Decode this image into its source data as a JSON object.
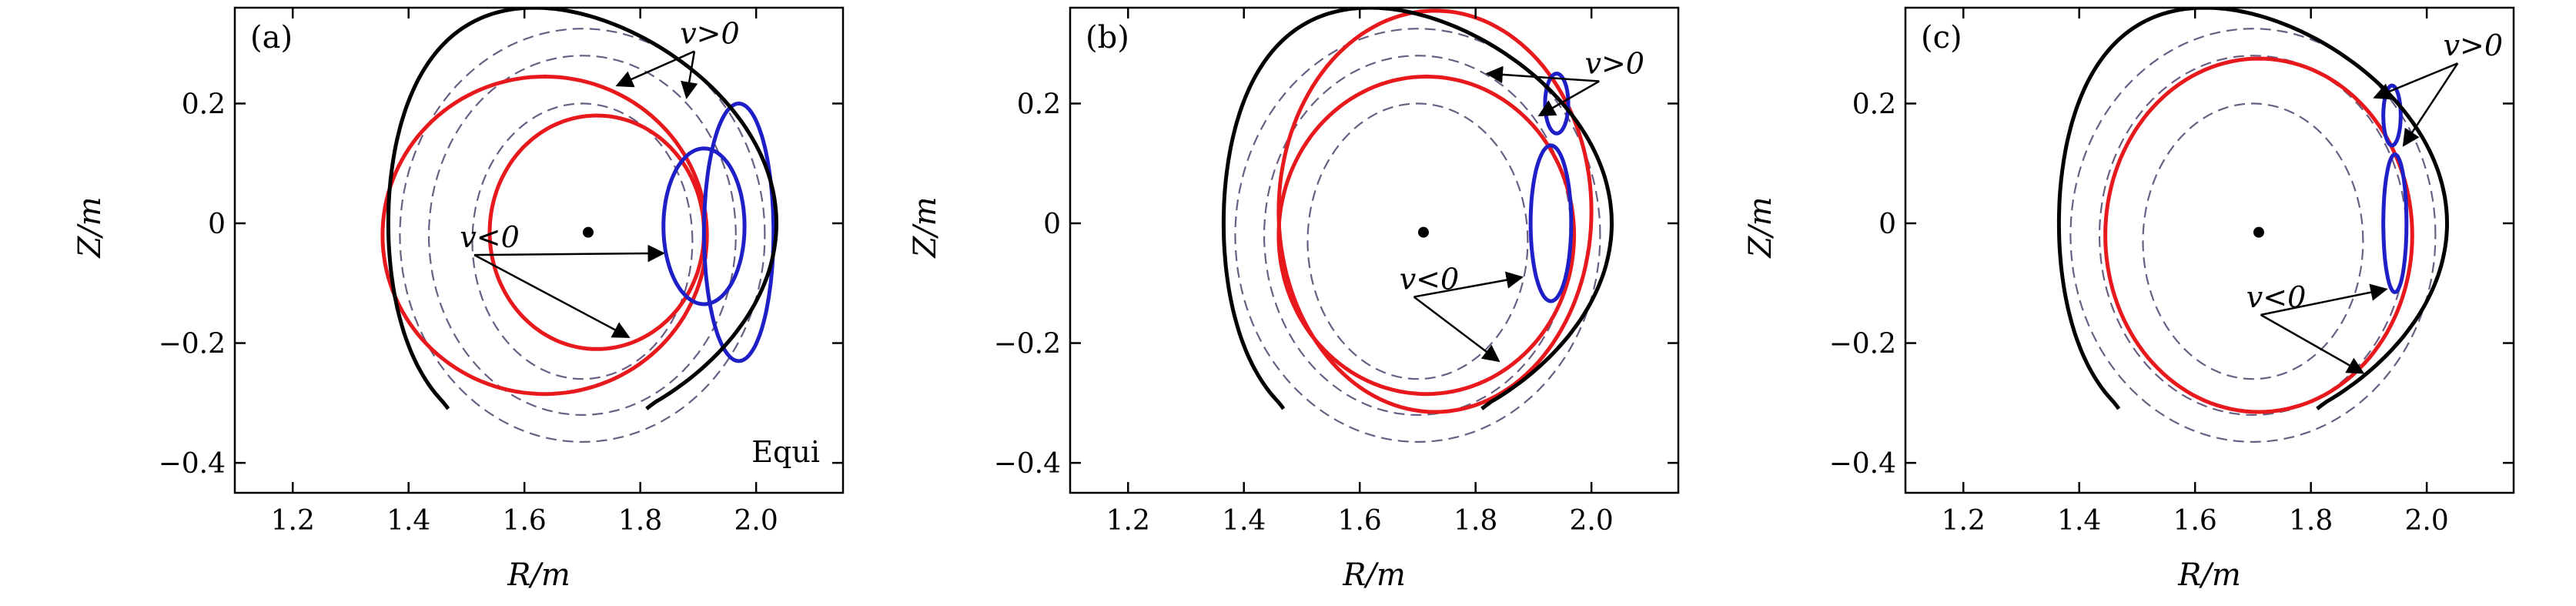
{
  "chart_data": [
    {
      "type": "contour",
      "panel_label": "(a)",
      "xlabel": "R/m",
      "ylabel": "Z/m",
      "xlim": [
        1.1,
        2.15
      ],
      "ylim": [
        -0.45,
        0.36
      ],
      "xticks": [
        1.2,
        1.4,
        1.6,
        1.8,
        2.0
      ],
      "yticks": [
        0.2,
        0,
        -0.2,
        -0.4
      ],
      "xtick_labels": [
        "1.2",
        "1.4",
        "1.6",
        "1.8",
        "2.0"
      ],
      "ytick_labels": [
        "0.2",
        "0",
        "−0.2",
        "−0.4"
      ],
      "corner_label": "Equi",
      "axis_center": [
        1.71,
        -0.015
      ],
      "boundary_color": "#000000",
      "dashed_color": "#6a5f82",
      "red_color": "#e8191c",
      "blue_color": "#1f1fc8",
      "dashed_contours": [
        {
          "cx": 1.7,
          "cy": -0.02,
          "a": 0.315,
          "b": 0.345
        },
        {
          "cx": 1.7,
          "cy": -0.02,
          "a": 0.265,
          "b": 0.3
        },
        {
          "cx": 1.7,
          "cy": -0.03,
          "a": 0.19,
          "b": 0.23
        }
      ],
      "red_contours": [
        {
          "cx": 1.635,
          "cy": -0.02,
          "a": 0.28,
          "b": 0.265
        },
        {
          "cx": 1.725,
          "cy": -0.015,
          "a": 0.185,
          "b": 0.195
        }
      ],
      "blue_regions": [
        {
          "cx": 1.91,
          "cy": -0.005,
          "a": 0.07,
          "b": 0.13
        },
        {
          "cx": 1.97,
          "cy": -0.015,
          "a": 0.06,
          "b": 0.215
        }
      ],
      "annotations": [
        {
          "text": "v>0",
          "at": [
            1.92,
            0.3
          ],
          "targets": [
            [
              1.76,
              0.23
            ],
            [
              1.88,
              0.21
            ]
          ]
        },
        {
          "text": "v<0",
          "at": [
            1.54,
            -0.04
          ],
          "targets": [
            [
              1.84,
              -0.05
            ],
            [
              1.78,
              -0.19
            ]
          ]
        }
      ]
    },
    {
      "type": "contour",
      "panel_label": "(b)",
      "xlabel": "R/m",
      "ylabel": "Z/m",
      "xlim": [
        1.1,
        2.15
      ],
      "ylim": [
        -0.45,
        0.36
      ],
      "xticks": [
        1.2,
        1.4,
        1.6,
        1.8,
        2.0
      ],
      "yticks": [
        0.2,
        0,
        -0.2,
        -0.4
      ],
      "xtick_labels": [
        "1.2",
        "1.4",
        "1.6",
        "1.8",
        "2.0"
      ],
      "ytick_labels": [
        "0.2",
        "0",
        "−0.2",
        "−0.4"
      ],
      "corner_label": "",
      "axis_center": [
        1.71,
        -0.015
      ],
      "boundary_color": "#000000",
      "dashed_color": "#6a5f82",
      "red_color": "#e8191c",
      "blue_color": "#1f1fc8",
      "dashed_contours": [
        {
          "cx": 1.7,
          "cy": -0.02,
          "a": 0.315,
          "b": 0.345
        },
        {
          "cx": 1.7,
          "cy": -0.02,
          "a": 0.265,
          "b": 0.3
        },
        {
          "cx": 1.7,
          "cy": -0.03,
          "a": 0.19,
          "b": 0.23
        }
      ],
      "red_contours": [
        {
          "cx": 1.715,
          "cy": -0.02,
          "a": 0.255,
          "b": 0.265
        },
        {
          "cx": 1.73,
          "cy": 0.02,
          "a": 0.27,
          "b": 0.335
        }
      ],
      "blue_regions": [
        {
          "cx": 1.93,
          "cy": 0.0,
          "a": 0.035,
          "b": 0.13
        },
        {
          "cx": 1.94,
          "cy": 0.2,
          "a": 0.02,
          "b": 0.05
        }
      ],
      "annotations": [
        {
          "text": "v>0",
          "at": [
            2.04,
            0.25
          ],
          "targets": [
            [
              1.82,
              0.25
            ],
            [
              1.91,
              0.18
            ]
          ]
        },
        {
          "text": "v<0",
          "at": [
            1.72,
            -0.11
          ],
          "targets": [
            [
              1.88,
              -0.09
            ],
            [
              1.84,
              -0.23
            ]
          ]
        }
      ]
    },
    {
      "type": "contour",
      "panel_label": "(c)",
      "xlabel": "R/m",
      "ylabel": "Z/m",
      "xlim": [
        1.1,
        2.15
      ],
      "ylim": [
        -0.45,
        0.36
      ],
      "xticks": [
        1.2,
        1.4,
        1.6,
        1.8,
        2.0
      ],
      "yticks": [
        0.2,
        0,
        -0.2,
        -0.4
      ],
      "xtick_labels": [
        "1.2",
        "1.4",
        "1.6",
        "1.8",
        "2.0"
      ],
      "ytick_labels": [
        "0.2",
        "0",
        "−0.2",
        "−0.4"
      ],
      "corner_label": "",
      "axis_center": [
        1.71,
        -0.015
      ],
      "boundary_color": "#000000",
      "dashed_color": "#6a5f82",
      "red_color": "#e8191c",
      "blue_color": "#1f1fc8",
      "dashed_contours": [
        {
          "cx": 1.7,
          "cy": -0.02,
          "a": 0.315,
          "b": 0.345
        },
        {
          "cx": 1.7,
          "cy": -0.02,
          "a": 0.265,
          "b": 0.3
        },
        {
          "cx": 1.7,
          "cy": -0.03,
          "a": 0.19,
          "b": 0.23
        }
      ],
      "red_contours": [
        {
          "cx": 1.71,
          "cy": -0.02,
          "a": 0.265,
          "b": 0.295
        }
      ],
      "blue_regions": [
        {
          "cx": 1.945,
          "cy": 0.0,
          "a": 0.02,
          "b": 0.115
        },
        {
          "cx": 1.94,
          "cy": 0.18,
          "a": 0.015,
          "b": 0.05
        }
      ],
      "annotations": [
        {
          "text": "v>0",
          "at": [
            2.08,
            0.28
          ],
          "targets": [
            [
              1.91,
              0.21
            ],
            [
              1.96,
              0.13
            ]
          ]
        },
        {
          "text": "v<0",
          "at": [
            1.74,
            -0.14
          ],
          "targets": [
            [
              1.93,
              -0.11
            ],
            [
              1.89,
              -0.25
            ]
          ]
        }
      ]
    }
  ]
}
